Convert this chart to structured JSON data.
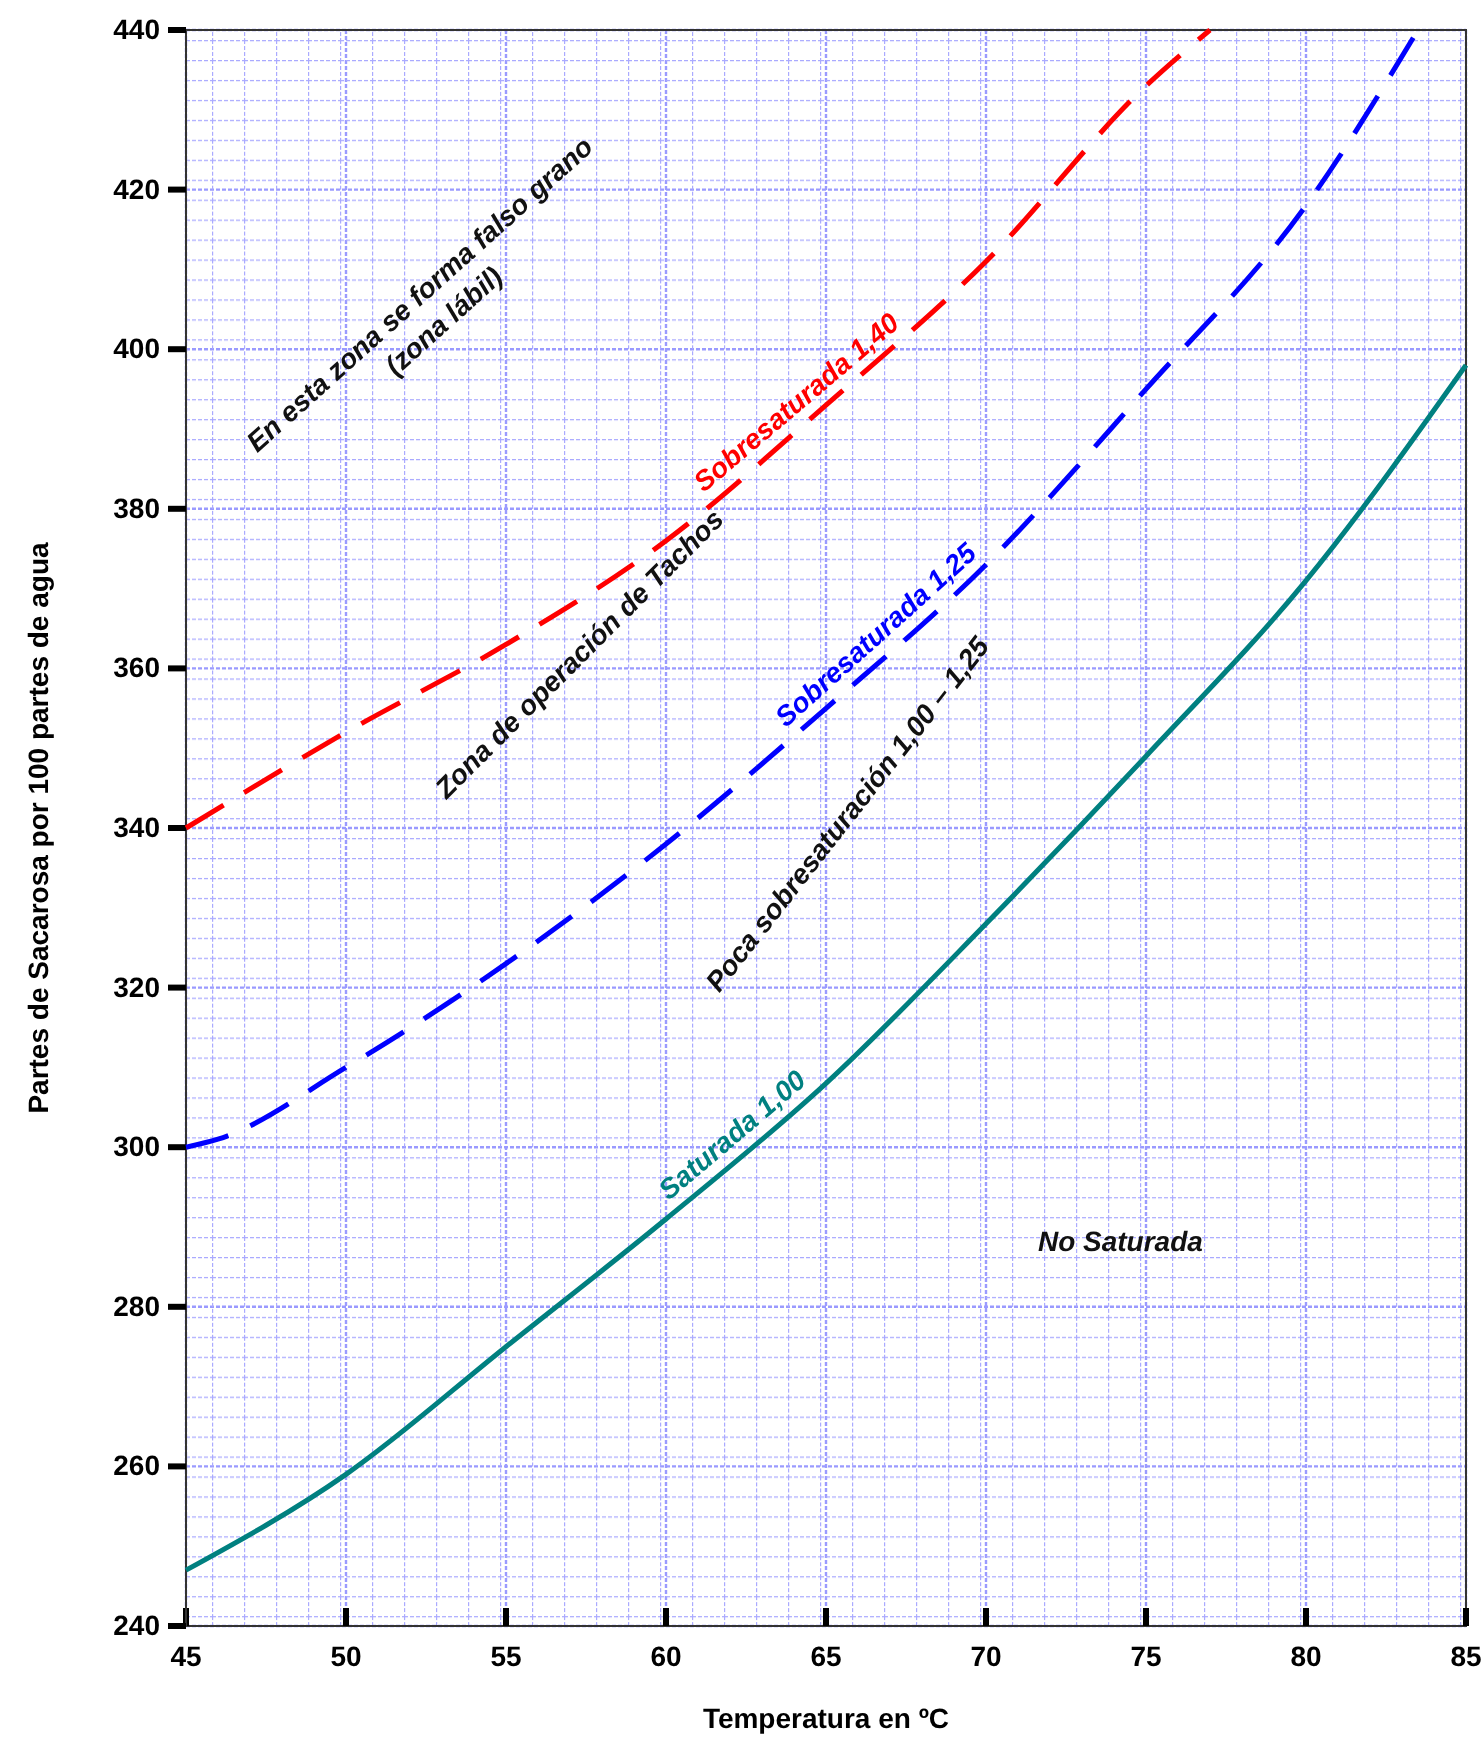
{
  "chart_data": {
    "type": "line",
    "xlabel": "Temperatura en ºC",
    "ylabel": "Partes de Sacarosa por 100 partes de agua",
    "xlim": [
      45,
      85
    ],
    "xticks": [
      45,
      50,
      55,
      60,
      65,
      70,
      75,
      80,
      85
    ],
    "ylim": [
      240,
      440
    ],
    "yticks": [
      240,
      260,
      280,
      300,
      320,
      340,
      360,
      380,
      400,
      420,
      440
    ],
    "grid": true,
    "series": [
      {
        "name": "Saturada 1,00",
        "color": "#008080",
        "line_style": "solid",
        "x": [
          45,
          50,
          55,
          60,
          65,
          70,
          75,
          80,
          85
        ],
        "values": [
          247,
          259,
          275,
          291,
          308,
          328,
          349,
          371,
          398
        ]
      },
      {
        "name": "Sobresaturada 1,25",
        "color": "#0000ff",
        "line_style": "dashed",
        "x": [
          45,
          46,
          50,
          55,
          60,
          65,
          70,
          75,
          80,
          83.5
        ],
        "values": [
          300,
          301,
          310,
          323,
          338,
          355,
          373,
          395,
          418,
          440
        ]
      },
      {
        "name": "Sobresaturada 1,40",
        "color": "#ff0000",
        "line_style": "dashed",
        "x": [
          45,
          50,
          55,
          60,
          65,
          70,
          75,
          77
        ],
        "values": [
          340,
          352,
          363,
          376,
          393,
          411,
          433,
          440
        ]
      }
    ],
    "annotations": [
      "En esta zona se forma falso grano\n(zona lábil)",
      "Zona de operación de Tachos",
      "Poca sobresaturación 1,00 – 1,25",
      "No Saturada"
    ]
  }
}
